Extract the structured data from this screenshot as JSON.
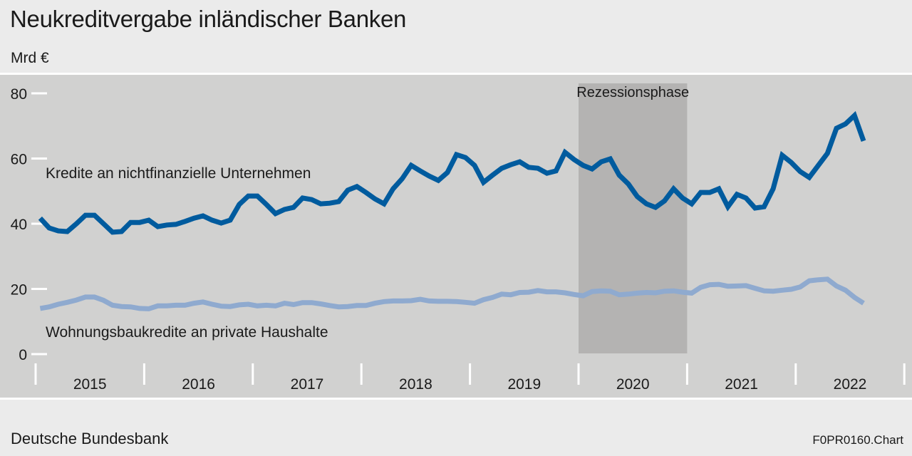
{
  "title": "Neukreditvergabe inländischer Banken",
  "unit": "Mrd €",
  "footer": {
    "source": "Deutsche Bundesbank",
    "code": "F0PR0160.Chart"
  },
  "chart_data": {
    "type": "line",
    "title": "Neukreditvergabe inländischer Banken",
    "ylabel": "Mrd €",
    "ylim": [
      0,
      80
    ],
    "yticks": [
      0,
      20,
      40,
      60,
      80
    ],
    "xlim": [
      "2015-01",
      "2022-12"
    ],
    "year_labels": [
      "2015",
      "2016",
      "2017",
      "2018",
      "2019",
      "2020",
      "2021",
      "2022"
    ],
    "grid": false,
    "shaded_regions": [
      {
        "label": "Rezessionsphase",
        "from": "2020-01",
        "to": "2020-12",
        "color": "#b4b3b2"
      }
    ],
    "x_start": "2015-01",
    "frequency": "monthly",
    "series": [
      {
        "name": "Kredite an nichtfinanzielle Unternehmen",
        "color": "#005b9e",
        "values": [
          41.7,
          38.7,
          37.8,
          37.6,
          40.0,
          42.6,
          42.6,
          40.0,
          37.4,
          37.6,
          40.4,
          40.4,
          41.1,
          39.1,
          39.6,
          39.8,
          40.7,
          41.7,
          42.4,
          41.1,
          40.2,
          41.1,
          45.9,
          48.5,
          48.5,
          45.9,
          43.1,
          44.4,
          45.0,
          47.9,
          47.4,
          46.1,
          46.3,
          46.8,
          50.3,
          51.4,
          49.6,
          47.6,
          46.1,
          50.7,
          53.8,
          57.9,
          56.2,
          54.6,
          53.3,
          55.7,
          61.2,
          60.3,
          57.9,
          52.7,
          54.9,
          57.0,
          58.1,
          59.0,
          57.3,
          57.0,
          55.5,
          56.2,
          61.9,
          59.7,
          57.9,
          56.8,
          59.0,
          59.9,
          54.9,
          52.2,
          48.3,
          46.1,
          45.0,
          47.0,
          50.7,
          47.9,
          46.1,
          49.6,
          49.6,
          50.7,
          45.2,
          49.0,
          47.9,
          44.8,
          45.2,
          50.7,
          61.0,
          58.8,
          56.0,
          54.2,
          57.9,
          61.6,
          69.3,
          70.6,
          73.2,
          65.4
        ]
      },
      {
        "name": "Wohnungsbaukredite an private Haushalte",
        "color": "#8faacf",
        "values": [
          14.0,
          14.5,
          15.3,
          15.9,
          16.6,
          17.5,
          17.5,
          16.5,
          15.0,
          14.6,
          14.5,
          14.0,
          13.9,
          14.8,
          14.8,
          15.0,
          15.0,
          15.6,
          16.0,
          15.3,
          14.7,
          14.6,
          15.1,
          15.3,
          14.8,
          15.0,
          14.8,
          15.6,
          15.2,
          15.8,
          15.8,
          15.4,
          14.9,
          14.5,
          14.6,
          14.9,
          14.9,
          15.6,
          16.1,
          16.3,
          16.3,
          16.4,
          16.8,
          16.3,
          16.2,
          16.2,
          16.1,
          15.9,
          15.6,
          16.7,
          17.4,
          18.4,
          18.2,
          18.9,
          19.0,
          19.5,
          19.1,
          19.1,
          18.8,
          18.3,
          17.9,
          19.2,
          19.4,
          19.3,
          18.2,
          18.4,
          18.7,
          18.9,
          18.8,
          19.3,
          19.4,
          19.0,
          18.7,
          20.5,
          21.3,
          21.4,
          20.8,
          20.9,
          21.0,
          20.2,
          19.4,
          19.3,
          19.6,
          19.9,
          20.6,
          22.5,
          22.8,
          23.0,
          20.9,
          19.6,
          17.4,
          15.6
        ]
      }
    ],
    "colors": {
      "panel": "#d1d1d0",
      "background": "#ebebeb",
      "recession": "#b4b3b2"
    }
  }
}
